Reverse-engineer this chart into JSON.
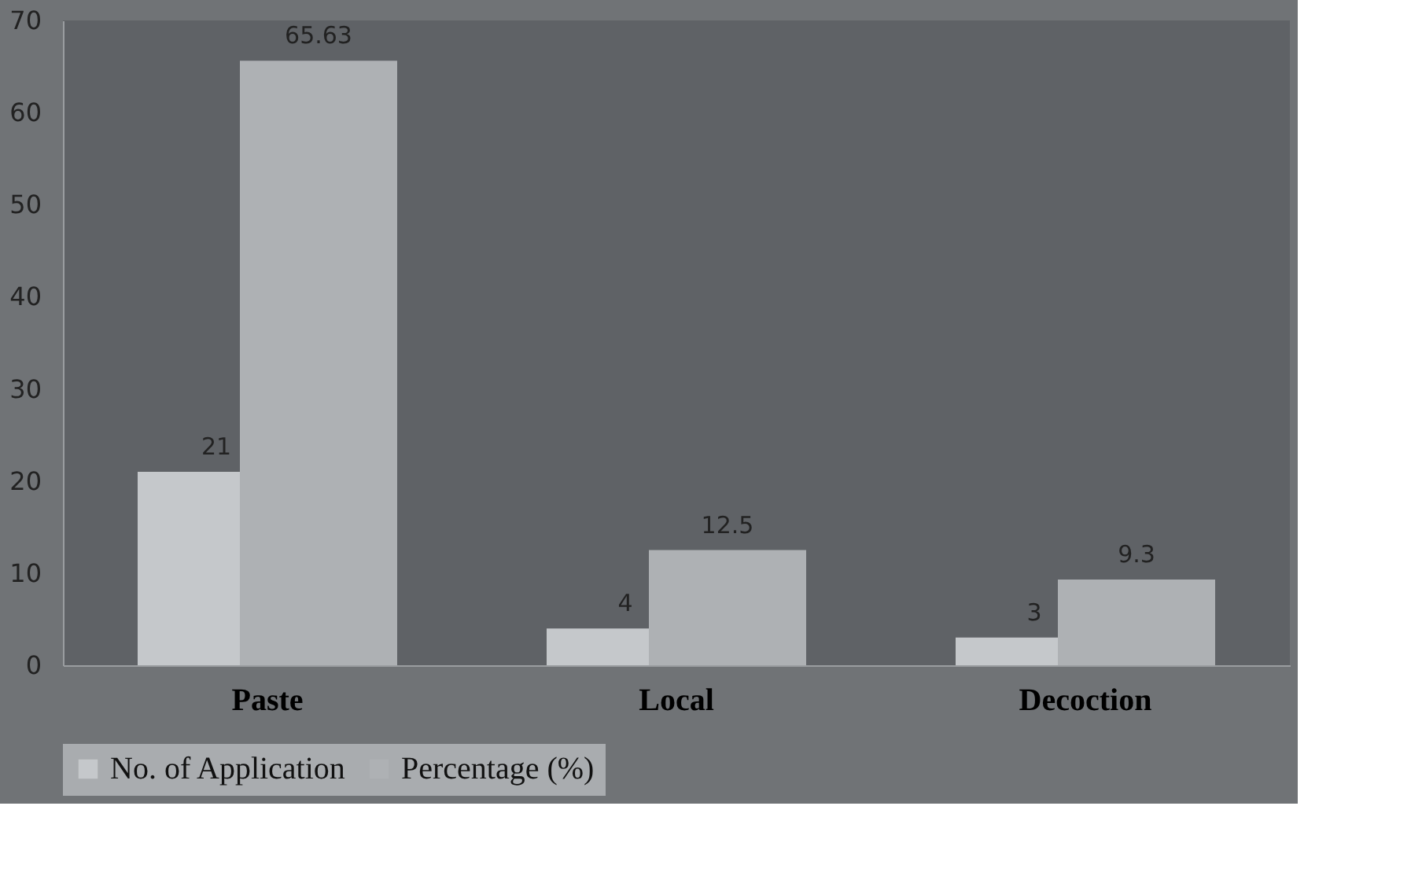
{
  "chart_data": {
    "type": "bar",
    "categories": [
      "Paste",
      "Local",
      "Decoction"
    ],
    "series": [
      {
        "name": "No. of Application",
        "color": "#c5c8cb",
        "values": [
          21,
          4,
          3
        ]
      },
      {
        "name": "Percentage (%)",
        "color": "#aeb1b4",
        "values": [
          65.63,
          12.5,
          9.3
        ]
      }
    ],
    "ylim": [
      0,
      70
    ],
    "yticks": [
      0,
      10,
      20,
      30,
      40,
      50,
      60,
      70
    ],
    "grid": false,
    "legend": "bottom",
    "data_labels": true
  }
}
